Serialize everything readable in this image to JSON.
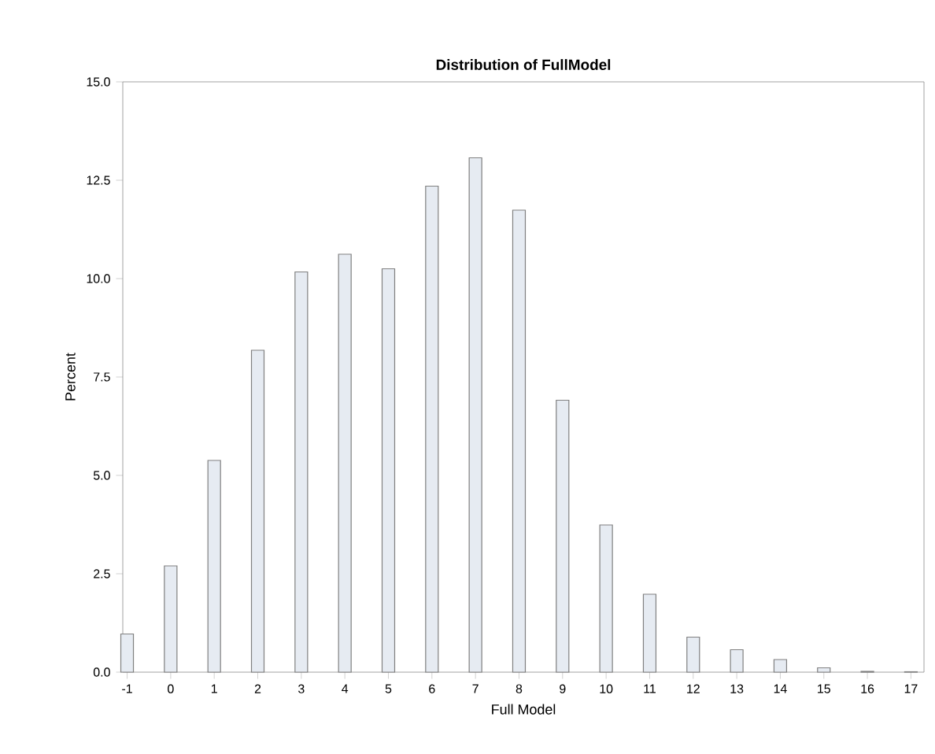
{
  "chart_data": {
    "type": "bar",
    "title": "Distribution of FullModel",
    "xlabel": "Full Model",
    "ylabel": "Percent",
    "categories": [
      "-1",
      "0",
      "1",
      "2",
      "3",
      "4",
      "5",
      "6",
      "7",
      "8",
      "9",
      "10",
      "11",
      "12",
      "13",
      "14",
      "15",
      "16",
      "17"
    ],
    "values": [
      0.97,
      2.7,
      5.38,
      8.18,
      10.17,
      10.62,
      10.25,
      12.35,
      13.07,
      11.74,
      6.91,
      3.74,
      1.98,
      0.89,
      0.57,
      0.32,
      0.11,
      0.02,
      0.01
    ],
    "color": "#e6ebf2",
    "ylim": [
      0,
      15
    ],
    "yticks": [
      {
        "value": 0,
        "label": "0.0"
      },
      {
        "value": 2.5,
        "label": "2.5"
      },
      {
        "value": 5,
        "label": "5.0"
      },
      {
        "value": 7.5,
        "label": "7.5"
      },
      {
        "value": 10,
        "label": "10.0"
      },
      {
        "value": 12.5,
        "label": "12.5"
      },
      {
        "value": 15,
        "label": "15.0"
      }
    ]
  }
}
